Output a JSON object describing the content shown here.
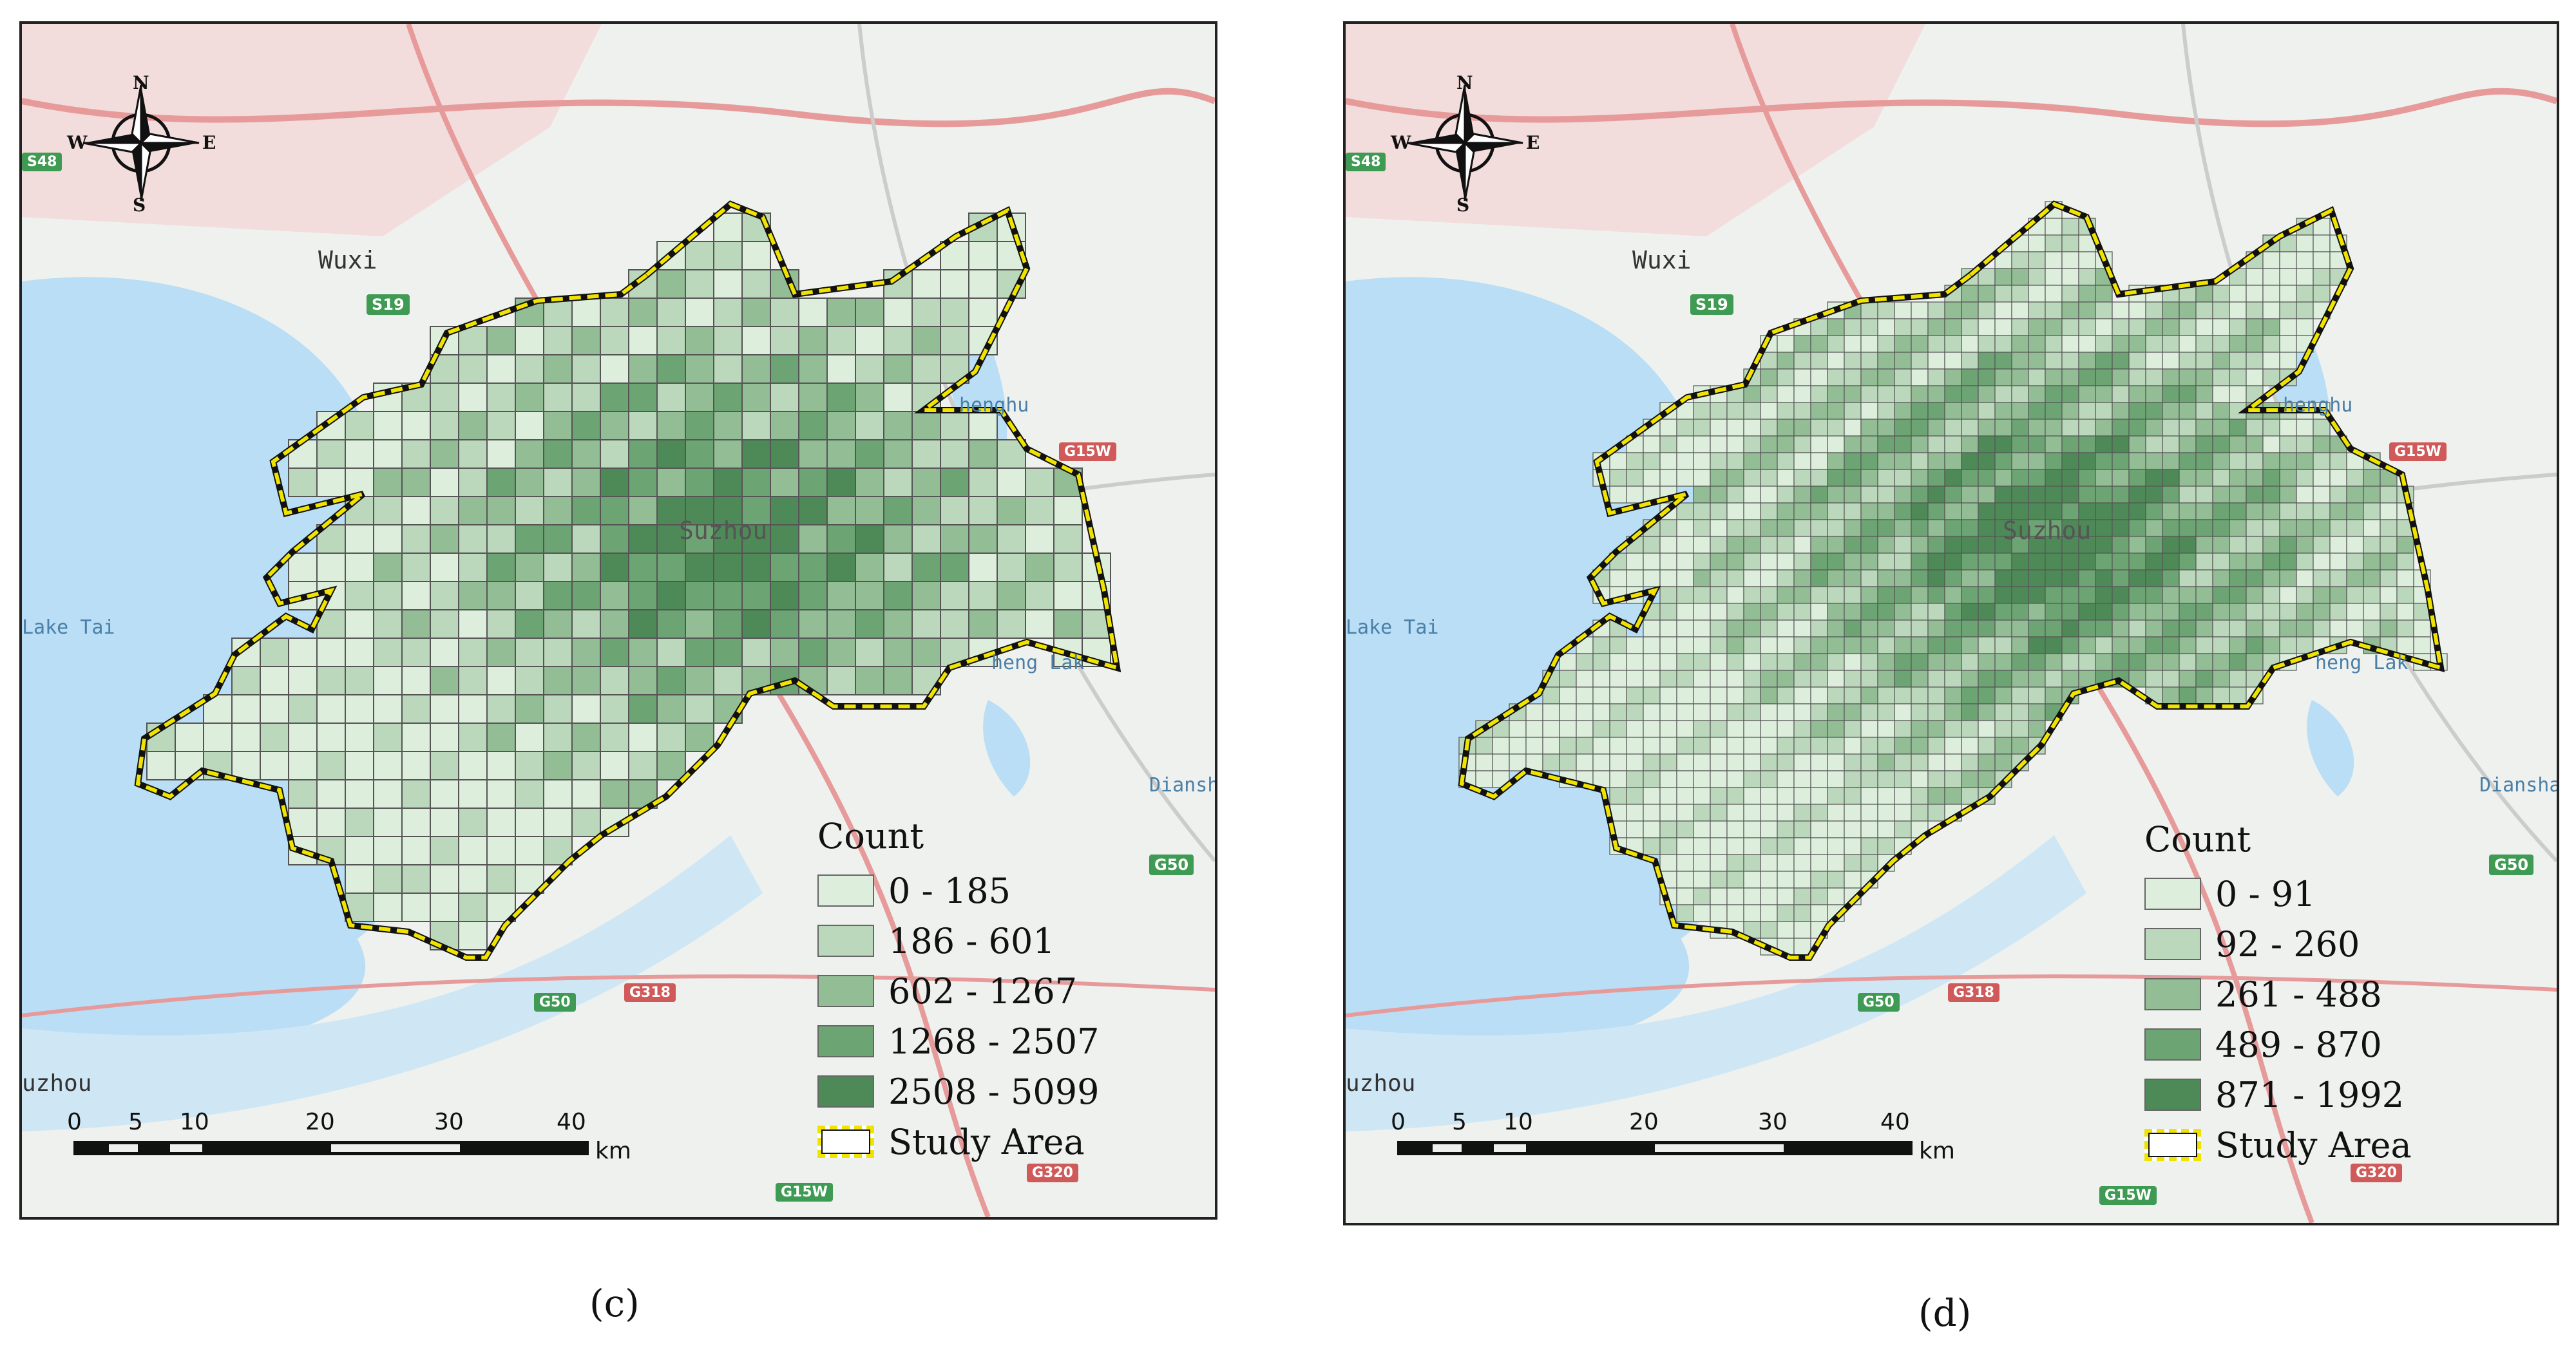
{
  "panels": [
    {
      "id": "c",
      "caption": "(c)",
      "places": {
        "wuxi": "Wuxi",
        "suzhou": "Suzhou",
        "lake_tai": "Lake Tai",
        "chenghu": "henghu",
        "cheng_lake": "heng Lak",
        "dianshan": "Diansha",
        "huzhou": "uzhou"
      },
      "roads": {
        "s48": "S48",
        "s19": "S19",
        "g15w": "G15W",
        "g50": "G50",
        "g50b": "G50",
        "g318": "G318",
        "g320": "G320",
        "g15w_b": "G15W"
      },
      "compass": {
        "n": "N",
        "s": "S",
        "e": "E",
        "w": "W"
      },
      "legend": {
        "title": "Count",
        "classes": [
          {
            "label": "0 - 185",
            "color": "#ddeedd"
          },
          {
            "label": "186 - 601",
            "color": "#bcd8bc"
          },
          {
            "label": "602 - 1267",
            "color": "#92bd95"
          },
          {
            "label": "1268 - 2507",
            "color": "#6da473"
          },
          {
            "label": "2508 - 5099",
            "color": "#4e8a57"
          }
        ],
        "study_area": "Study Area"
      },
      "scale": {
        "ticks": [
          "0",
          "5",
          "10",
          "20",
          "30",
          "40"
        ],
        "unit": "km"
      }
    },
    {
      "id": "d",
      "caption": "(d)",
      "places": {
        "wuxi": "Wuxi",
        "suzhou": "Suzhou",
        "lake_tai": "Lake Tai",
        "chenghu": "henghu",
        "cheng_lake": "heng Lak",
        "dianshan": "Diansha",
        "huzhou": "uzhou"
      },
      "roads": {
        "s48": "S48",
        "s19": "S19",
        "g15w": "G15W",
        "g50": "G50",
        "g50b": "G50",
        "g318": "G318",
        "g320": "G320",
        "g15w_b": "G15W"
      },
      "compass": {
        "n": "N",
        "s": "S",
        "e": "E",
        "w": "W"
      },
      "legend": {
        "title": "Count",
        "classes": [
          {
            "label": "0 - 91",
            "color": "#ddeedd"
          },
          {
            "label": "92 - 260",
            "color": "#bcd8bc"
          },
          {
            "label": "261 - 488",
            "color": "#92bd95"
          },
          {
            "label": "489 - 870",
            "color": "#6da473"
          },
          {
            "label": "871 - 1992",
            "color": "#4e8a57"
          }
        ],
        "study_area": "Study Area"
      },
      "scale": {
        "ticks": [
          "0",
          "5",
          "10",
          "20",
          "30",
          "40"
        ],
        "unit": "km"
      }
    }
  ],
  "colors": {
    "water": "#b9def5",
    "land": "#eef1ee",
    "urban": "#f3dcdc",
    "boundary": "#f1e300",
    "grid_stroke": "#555555",
    "road_red": "#e79a9a"
  }
}
